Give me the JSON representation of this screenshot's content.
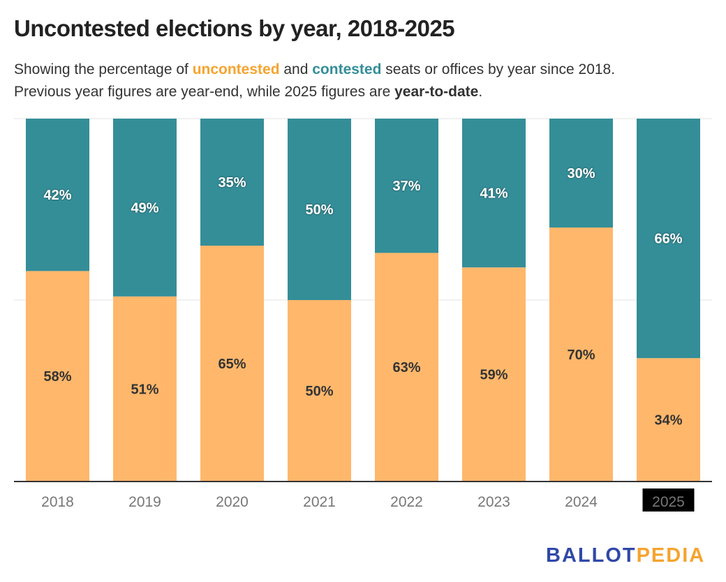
{
  "header": {
    "title": "Uncontested elections by year, 2018-2025",
    "subtitle_parts": {
      "p1": "Showing the percentage of ",
      "uncontested": "uncontested",
      "p2": " and ",
      "contested": "contested",
      "p3": " seats or offices by year since 2018.",
      "p4": "Previous year figures are year-end, while 2025 figures are ",
      "ytd": "year-to-date",
      "p5": "."
    }
  },
  "chart_data": {
    "type": "bar",
    "stacked": true,
    "orientation": "vertical",
    "categories": [
      "2018",
      "2019",
      "2020",
      "2021",
      "2022",
      "2023",
      "2024",
      "2025"
    ],
    "highlighted_category": "2025",
    "series": [
      {
        "name": "uncontested",
        "color": "#ffb76b",
        "values": [
          58,
          51,
          65,
          50,
          63,
          59,
          70,
          34
        ]
      },
      {
        "name": "contested",
        "color": "#348e98",
        "values": [
          42,
          49,
          35,
          50,
          37,
          41,
          30,
          66
        ]
      }
    ],
    "ylim": [
      0,
      100
    ],
    "grid": true,
    "data_label_suffix": "%"
  },
  "logo": {
    "part1": "BALLOT",
    "part2": "PEDIA"
  }
}
